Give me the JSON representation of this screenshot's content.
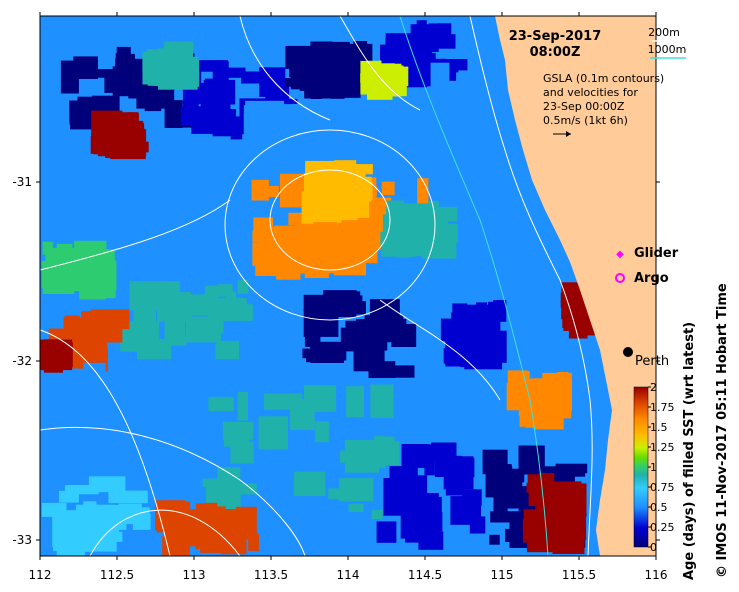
{
  "map": {
    "date": "23-Sep-2017",
    "time": "08:00Z",
    "contour_legend": {
      "shallow": "200m",
      "deep": "1000m",
      "shallow_color": "#ffffff",
      "deep_color": "#40e0d0"
    },
    "gsla_note": [
      "GSLA (0.1m contours)",
      "and velocities for",
      "23-Sep 00:00Z",
      "0.5m/s (1kt 6h)"
    ],
    "glider_label": "Glider",
    "argo_label": "Argo",
    "city_label": "Perth",
    "x_ticks": [
      "112",
      "112.5",
      "113",
      "113.5",
      "114",
      "114.5",
      "115",
      "115.5",
      "116"
    ],
    "y_ticks": [
      "-31",
      "-32",
      "-33"
    ],
    "colorbar": {
      "title": "Age (days) of filled SST (wrt latest)",
      "ticks": [
        "2",
        "1.75",
        "1.5",
        "1.25",
        "1",
        "0.75",
        "0.5",
        "0.25",
        "0"
      ],
      "colors": [
        "#00007a",
        "#0000d0",
        "#1e90ff",
        "#33ccff",
        "#20b2aa",
        "#2ecc71",
        "#66dd00",
        "#ccee00",
        "#ffbb00",
        "#ff8800",
        "#dd4400",
        "#990000"
      ]
    },
    "credit": "© IMOS 11-Nov-2017 05:11 Hobart Time",
    "land_color": "#ffcc99"
  }
}
